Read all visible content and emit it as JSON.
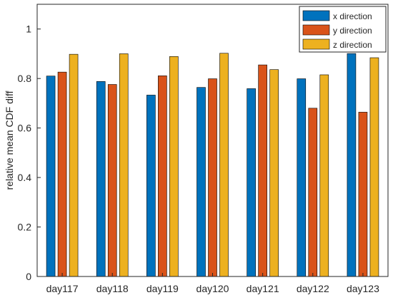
{
  "chart_data": {
    "type": "bar",
    "title": "",
    "xlabel": "",
    "ylabel": "relative mean CDF diff",
    "categories": [
      "day117",
      "day118",
      "day119",
      "day120",
      "day121",
      "day122",
      "day123"
    ],
    "series": [
      {
        "name": "x direction",
        "color": "#0072bd",
        "values": [
          0.81,
          0.788,
          0.733,
          0.764,
          0.759,
          0.799,
          0.901
        ]
      },
      {
        "name": "y direction",
        "color": "#d95319",
        "values": [
          0.826,
          0.776,
          0.811,
          0.799,
          0.855,
          0.68,
          0.664
        ]
      },
      {
        "name": "z direction",
        "color": "#edb120",
        "values": [
          0.898,
          0.9,
          0.889,
          0.902,
          0.836,
          0.815,
          0.884
        ]
      }
    ],
    "ylim": [
      0,
      1.1
    ],
    "yticks": [
      0,
      0.2,
      0.4,
      0.6,
      0.8,
      1
    ],
    "ytick_labels": [
      "0",
      "0.2",
      "0.4",
      "0.6",
      "0.8",
      "1"
    ],
    "grid": false,
    "legend_position": "top-right"
  }
}
